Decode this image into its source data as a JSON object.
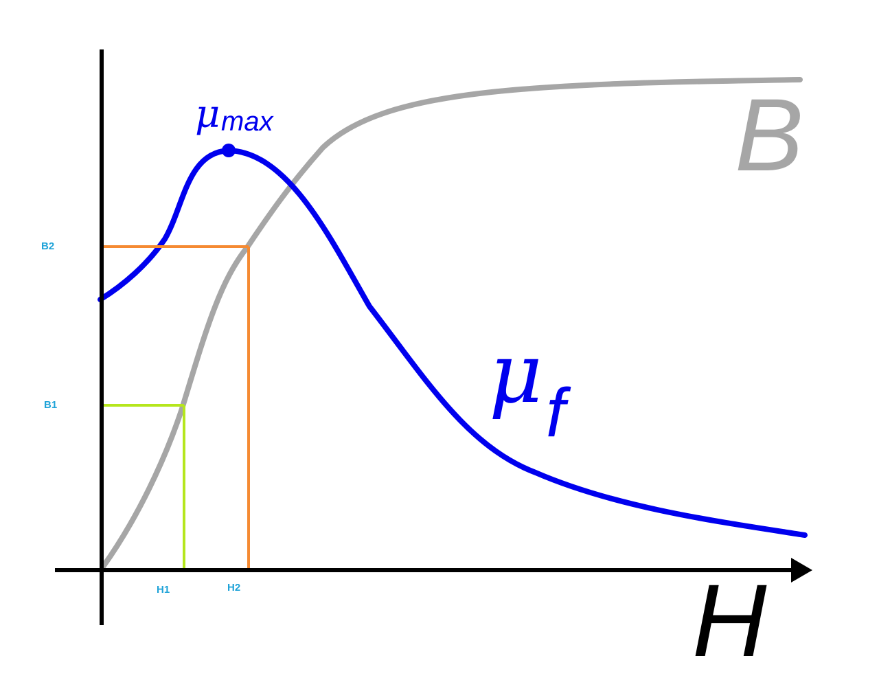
{
  "diagram": {
    "x_axis_label": "H",
    "curve_b_label": "B",
    "mu_f_symbol": "μ",
    "mu_f_subscript": "f",
    "mu_max_symbol": "μ",
    "mu_max_subscript": "max",
    "marks": {
      "h1": "H1",
      "h2": "H2",
      "b1": "B1",
      "b2": "B2"
    },
    "colors": {
      "axis": "#000000",
      "b_curve": "#a6a6a6",
      "mu_curve": "#0000ee",
      "level_1": "#b5e61d",
      "level_2": "#f58a32",
      "mark_labels": "#1fa3d8"
    }
  }
}
